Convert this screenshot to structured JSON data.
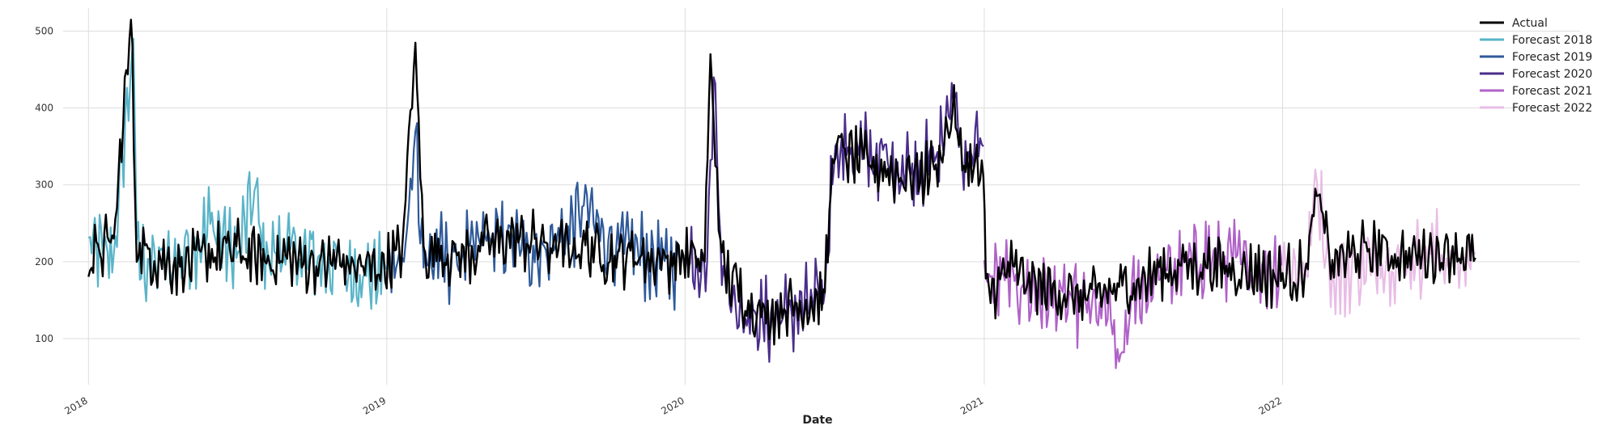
{
  "chart_data": {
    "type": "line",
    "title": "",
    "xlabel": "Date",
    "ylabel": "",
    "x_ticks": [
      "2018",
      "2019",
      "2020",
      "2021",
      "2022"
    ],
    "y_ticks": [
      100,
      200,
      300,
      400,
      500
    ],
    "xlim": [
      "2017-12-01",
      "2022-12-31"
    ],
    "ylim": [
      40,
      530
    ],
    "grid": true,
    "legend_position": "top-right",
    "series": [
      {
        "name": "Actual",
        "color": "#000000",
        "x": [
          "2018-01-01",
          "2018-02-01",
          "2018-02-22",
          "2018-03-01",
          "2018-03-15",
          "2018-04-01",
          "2018-05-01",
          "2018-06-01",
          "2018-07-01",
          "2018-08-01",
          "2018-09-01",
          "2018-10-01",
          "2018-11-01",
          "2018-12-01",
          "2019-01-01",
          "2019-01-20",
          "2019-02-05",
          "2019-02-15",
          "2019-03-01",
          "2019-04-01",
          "2019-05-01",
          "2019-06-01",
          "2019-07-01",
          "2019-08-01",
          "2019-09-01",
          "2019-10-01",
          "2019-11-01",
          "2019-12-01",
          "2020-01-01",
          "2020-01-25",
          "2020-02-01",
          "2020-02-15",
          "2020-03-01",
          "2020-04-01",
          "2020-05-01",
          "2020-06-01",
          "2020-06-20",
          "2020-07-01",
          "2020-08-01",
          "2020-09-01",
          "2020-10-01",
          "2020-11-01",
          "2020-11-25",
          "2020-12-01",
          "2020-12-31",
          "2021-01-03",
          "2021-02-01",
          "2021-03-01",
          "2021-04-01",
          "2021-05-01",
          "2021-06-01",
          "2021-07-01",
          "2021-08-01",
          "2021-09-01",
          "2021-10-01",
          "2021-11-01",
          "2021-12-01",
          "2022-01-01",
          "2022-02-01",
          "2022-02-10",
          "2022-03-01",
          "2022-04-01",
          "2022-05-01",
          "2022-06-01",
          "2022-07-01",
          "2022-08-01",
          "2022-08-25"
        ],
        "values": [
          200,
          230,
          515,
          220,
          210,
          200,
          195,
          210,
          215,
          200,
          205,
          195,
          200,
          190,
          195,
          220,
          485,
          210,
          215,
          205,
          220,
          230,
          225,
          215,
          220,
          205,
          210,
          200,
          205,
          200,
          470,
          190,
          170,
          130,
          140,
          145,
          160,
          350,
          330,
          320,
          310,
          320,
          400,
          340,
          310,
          155,
          190,
          170,
          160,
          150,
          160,
          170,
          185,
          195,
          195,
          190,
          185,
          180,
          190,
          295,
          200,
          210,
          215,
          205,
          210,
          215,
          205
        ]
      },
      {
        "name": "Forecast 2018",
        "color": "#5ab4c8",
        "x": [
          "2018-01-01",
          "2018-02-01",
          "2018-02-25",
          "2018-03-01",
          "2018-04-01",
          "2018-05-01",
          "2018-06-01",
          "2018-07-01",
          "2018-07-25",
          "2018-08-01",
          "2018-09-01",
          "2018-10-01",
          "2018-11-01",
          "2018-12-01",
          "2018-12-31"
        ],
        "values": [
          220,
          210,
          490,
          200,
          195,
          210,
          250,
          205,
          300,
          210,
          215,
          200,
          195,
          180,
          190
        ]
      },
      {
        "name": "Forecast 2019",
        "color": "#2f5a9a",
        "x": [
          "2019-01-01",
          "2019-01-22",
          "2019-02-05",
          "2019-02-15",
          "2019-03-01",
          "2019-04-01",
          "2019-05-01",
          "2019-06-01",
          "2019-07-01",
          "2019-08-01",
          "2019-09-01",
          "2019-10-01",
          "2019-11-01",
          "2019-12-01",
          "2019-12-31"
        ],
        "values": [
          190,
          200,
          370,
          195,
          210,
          200,
          230,
          225,
          210,
          230,
          270,
          220,
          215,
          195,
          200
        ]
      },
      {
        "name": "Forecast 2020",
        "color": "#4a2d8a",
        "x": [
          "2020-01-01",
          "2020-01-28",
          "2020-02-05",
          "2020-02-15",
          "2020-03-01",
          "2020-04-01",
          "2020-05-01",
          "2020-06-01",
          "2020-06-20",
          "2020-07-01",
          "2020-08-01",
          "2020-09-01",
          "2020-10-01",
          "2020-11-01",
          "2020-11-28",
          "2020-12-01",
          "2020-12-31"
        ],
        "values": [
          210,
          200,
          440,
          195,
          150,
          120,
          130,
          140,
          160,
          350,
          340,
          330,
          320,
          330,
          420,
          340,
          350
        ]
      },
      {
        "name": "Forecast 2021",
        "color": "#b062c8",
        "x": [
          "2021-01-01",
          "2021-02-01",
          "2021-03-01",
          "2021-04-01",
          "2021-05-01",
          "2021-06-01",
          "2021-06-15",
          "2021-07-01",
          "2021-08-01",
          "2021-09-01",
          "2021-10-01",
          "2021-11-01",
          "2021-12-01",
          "2021-12-31"
        ],
        "values": [
          180,
          175,
          160,
          150,
          140,
          130,
          70,
          150,
          180,
          190,
          205,
          200,
          190,
          195
        ]
      },
      {
        "name": "Forecast 2022",
        "color": "#e8bde6",
        "x": [
          "2022-01-01",
          "2022-02-01",
          "2022-02-10",
          "2022-03-01",
          "2022-04-01",
          "2022-05-01",
          "2022-06-01",
          "2022-07-01",
          "2022-08-01",
          "2022-08-25"
        ],
        "values": [
          200,
          180,
          320,
          175,
          190,
          205,
          200,
          215,
          195,
          210
        ]
      }
    ]
  }
}
